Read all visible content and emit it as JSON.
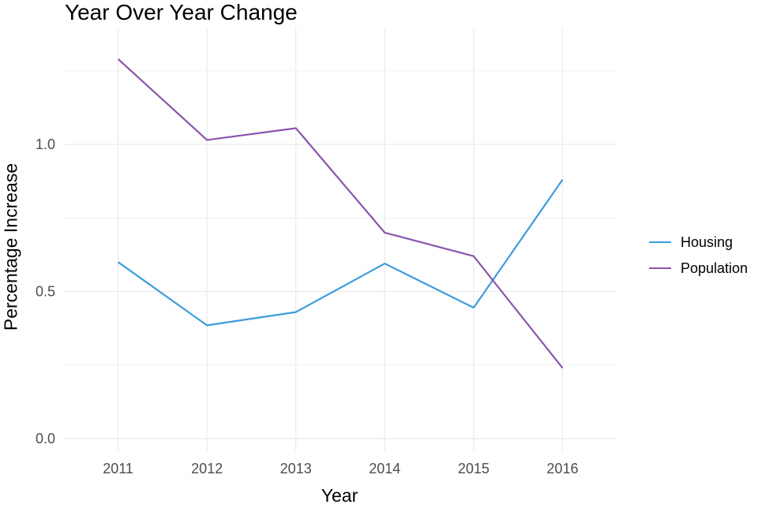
{
  "chart_data": {
    "type": "line",
    "title": "Year Over Year Change",
    "xlabel": "Year",
    "ylabel": "Percentage Increase",
    "x": [
      2011,
      2012,
      2013,
      2014,
      2015,
      2016
    ],
    "x_tick_labels": [
      "2011",
      "2012",
      "2013",
      "2014",
      "2015",
      "2016"
    ],
    "y_ticks": [
      0.0,
      0.5,
      1.0
    ],
    "y_tick_labels": [
      "0.0",
      "0.5",
      "1.0"
    ],
    "xlim": [
      2010.4,
      2016.6
    ],
    "ylim": [
      0,
      1.3
    ],
    "grid": true,
    "legend_position": "right",
    "series": [
      {
        "name": "Housing",
        "color": "#3d9ddb",
        "values": [
          0.6,
          0.385,
          0.43,
          0.595,
          0.445,
          0.88
        ]
      },
      {
        "name": "Population",
        "color": "#8a55ad",
        "values": [
          1.29,
          1.015,
          1.055,
          0.7,
          0.62,
          0.24
        ]
      }
    ]
  }
}
